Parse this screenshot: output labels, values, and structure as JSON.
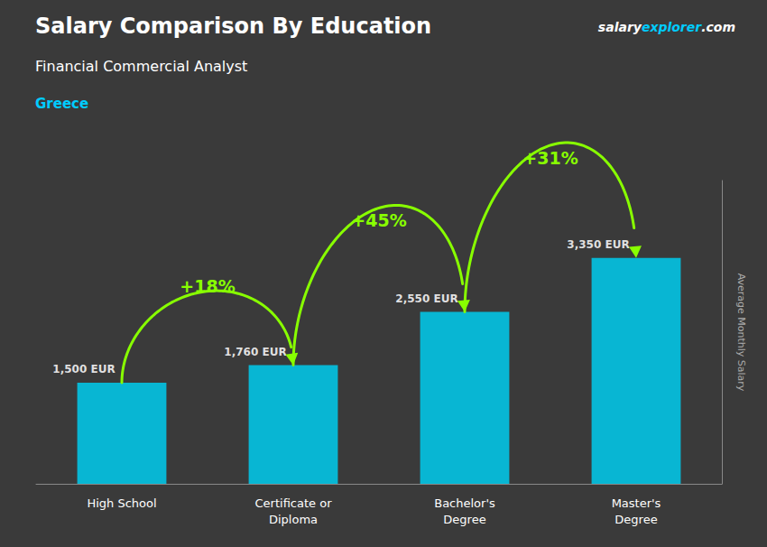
{
  "chart_data": {
    "type": "bar",
    "title": "Salary Comparison By Education",
    "subtitle": "Financial Commercial Analyst",
    "annotations": {
      "country": "Greece",
      "brand": [
        "salary",
        "explorer",
        ".com"
      ],
      "changes": [
        "+18%",
        "+45%",
        "+31%"
      ]
    },
    "ylabel": "Average Monthly Salary",
    "categories": [
      "High School",
      "Certificate or\nDiploma",
      "Bachelor's\nDegree",
      "Master's\nDegree"
    ],
    "values": [
      1500,
      1760,
      2550,
      3350
    ],
    "value_labels": [
      "1,500 EUR",
      "1,760 EUR",
      "2,550 EUR",
      "3,350 EUR"
    ],
    "data_labels": true,
    "color": "#00CCEE",
    "ylim": [
      0,
      4500
    ],
    "grid": false,
    "tick_labels": "x"
  }
}
